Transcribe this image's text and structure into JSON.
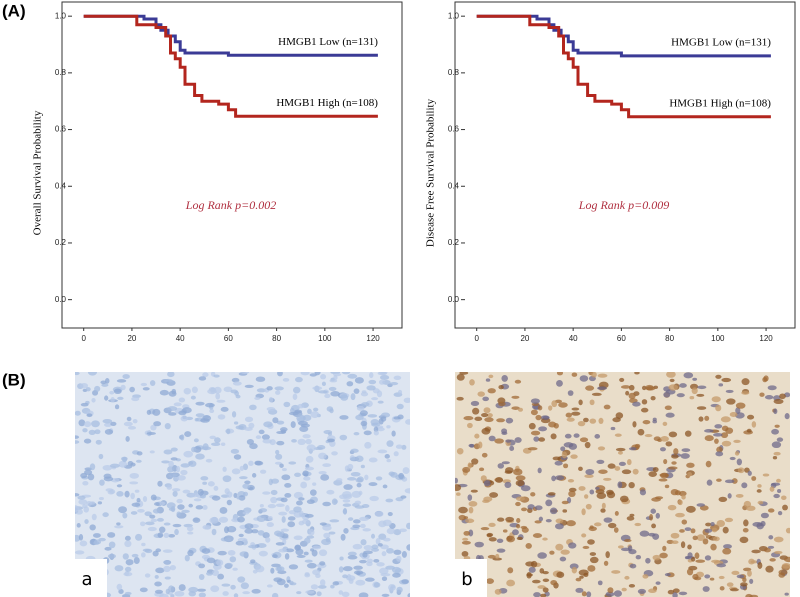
{
  "panel_a": "(A)",
  "panel_b": "(B)",
  "chart_data": [
    {
      "type": "line",
      "y_label": "Overall Survival Probability",
      "annotation": "Log Rank p=0.002",
      "xlim": [
        -9,
        132
      ],
      "ylim": [
        -0.1,
        1.05
      ],
      "xticks": [
        0,
        20,
        40,
        60,
        80,
        100,
        120
      ],
      "yticks": [
        {
          "value": 0,
          "label": "0.0"
        },
        0.2,
        0.4,
        0.6,
        0.8,
        {
          "value": 1,
          "label": "1.0"
        }
      ],
      "series": [
        {
          "name": "HMGB1 Low (n=131)",
          "color": "#3b3b96",
          "x": [
            0,
            25,
            25,
            30,
            30,
            32,
            32,
            35,
            35,
            38,
            38,
            40,
            40,
            42,
            42,
            45,
            45,
            60,
            60,
            122
          ],
          "values": [
            1,
            1,
            0.99,
            0.99,
            0.97,
            0.97,
            0.95,
            0.95,
            0.93,
            0.93,
            0.91,
            0.91,
            0.88,
            0.88,
            0.87,
            0.87,
            0.87,
            0.87,
            0.862,
            0.862
          ]
        },
        {
          "name": "HMGB1 High (n=108)",
          "color": "#b3261e",
          "x": [
            0,
            22,
            22,
            30,
            30,
            34,
            34,
            36,
            36,
            38,
            38,
            40,
            40,
            42,
            42,
            46,
            46,
            49,
            49,
            56,
            56,
            60,
            60,
            63,
            63,
            122
          ],
          "values": [
            1,
            1,
            0.97,
            0.97,
            0.96,
            0.96,
            0.93,
            0.93,
            0.87,
            0.87,
            0.85,
            0.85,
            0.82,
            0.82,
            0.76,
            0.76,
            0.72,
            0.72,
            0.7,
            0.7,
            0.69,
            0.69,
            0.67,
            0.67,
            0.647,
            0.647
          ]
        }
      ]
    },
    {
      "type": "line",
      "y_label": "Disease Free Survival Probability",
      "annotation": "Log Rank p=0.009",
      "xlim": [
        -9,
        132
      ],
      "ylim": [
        -0.1,
        1.05
      ],
      "xticks": [
        0,
        20,
        40,
        60,
        80,
        100,
        120
      ],
      "yticks": [
        {
          "value": 0,
          "label": "0.0"
        },
        0.2,
        0.4,
        0.6,
        0.8,
        {
          "value": 1,
          "label": "1.0"
        }
      ],
      "series": [
        {
          "name": "HMGB1 Low (n=131)",
          "color": "#3b3b96",
          "x": [
            0,
            25,
            25,
            30,
            30,
            32,
            32,
            35,
            35,
            38,
            38,
            40,
            40,
            42,
            42,
            60,
            60,
            122
          ],
          "values": [
            1,
            1,
            0.99,
            0.99,
            0.97,
            0.97,
            0.95,
            0.95,
            0.93,
            0.93,
            0.91,
            0.91,
            0.88,
            0.88,
            0.87,
            0.87,
            0.86,
            0.86
          ]
        },
        {
          "name": "HMGB1 High (n=108)",
          "color": "#b3261e",
          "x": [
            0,
            22,
            22,
            30,
            30,
            34,
            34,
            36,
            36,
            38,
            38,
            40,
            40,
            42,
            42,
            46,
            46,
            49,
            49,
            56,
            56,
            60,
            60,
            63,
            63,
            122
          ],
          "values": [
            1,
            1,
            0.97,
            0.97,
            0.96,
            0.96,
            0.93,
            0.93,
            0.87,
            0.87,
            0.85,
            0.85,
            0.82,
            0.82,
            0.76,
            0.76,
            0.72,
            0.72,
            0.7,
            0.7,
            0.69,
            0.69,
            0.67,
            0.67,
            0.645,
            0.645
          ]
        }
      ]
    }
  ],
  "images": [
    {
      "label": "a"
    },
    {
      "label": "b"
    }
  ]
}
